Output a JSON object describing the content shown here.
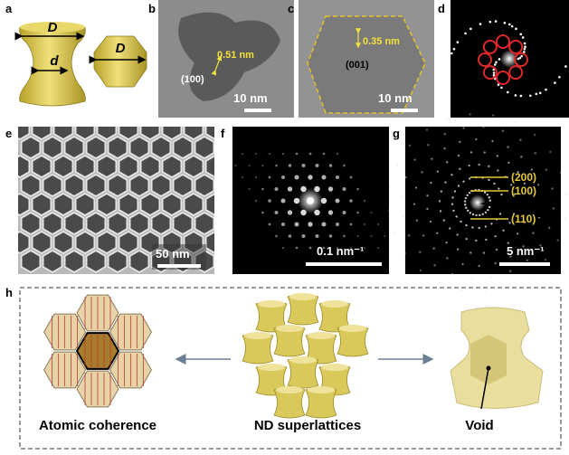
{
  "panels": {
    "a": {
      "label": "a",
      "outer_diameter": "D",
      "neck_diameter": "d",
      "hex_diameter": "D"
    },
    "b": {
      "label": "b",
      "spacing": "0.51 nm",
      "plane": "(100)",
      "scale_bar": "10 nm"
    },
    "c": {
      "label": "c",
      "spacing": "0.35 nm",
      "plane": "(001)",
      "scale_bar": "10 nm"
    },
    "d": {
      "label": "d"
    },
    "e": {
      "label": "e",
      "scale_bar": "50 nm"
    },
    "f": {
      "label": "f",
      "scale_bar": "0.1 nm⁻¹"
    },
    "g": {
      "label": "g",
      "rings": [
        "(200)",
        "(100)",
        "(110)"
      ],
      "scale_bar": "5 nm⁻¹"
    },
    "h": {
      "label": "h",
      "left_caption": "Atomic coherence",
      "center_caption": "ND superlattices",
      "right_caption": "Void"
    }
  }
}
